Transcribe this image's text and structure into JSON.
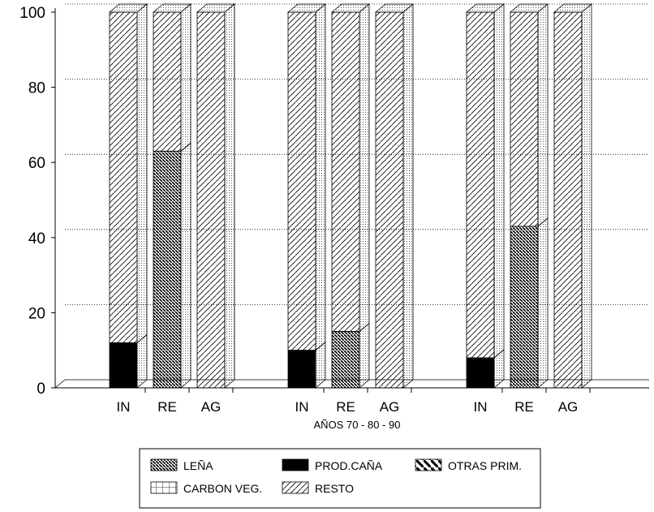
{
  "chart_data": {
    "type": "bar",
    "stacked": true,
    "three_d": true,
    "xlabel": "AÑOS 70 - 80 - 90",
    "ylabel": "",
    "ylim": [
      0,
      100
    ],
    "yticks": [
      0,
      20,
      40,
      60,
      80,
      100
    ],
    "grid": true,
    "legend_placement": "bottom",
    "groups": [
      "70",
      "80",
      "90"
    ],
    "categories": [
      "IN",
      "RE",
      "AG",
      "IN",
      "RE",
      "AG",
      "IN",
      "RE",
      "AG"
    ],
    "series": [
      {
        "name": "LEÑA",
        "pattern": "dense-backslash",
        "values": [
          0,
          63,
          0,
          0,
          15,
          0,
          0,
          43,
          0
        ]
      },
      {
        "name": "PROD.CAÑA",
        "pattern": "solid-black",
        "values": [
          12,
          0,
          0,
          10,
          0,
          0,
          8,
          0,
          0
        ]
      },
      {
        "name": "OTRAS PRIM.",
        "pattern": "wide-backslash",
        "values": [
          0,
          0,
          0,
          0,
          0,
          0,
          0,
          0,
          0
        ]
      },
      {
        "name": "CARBON VEG.",
        "pattern": "grid",
        "values": [
          0,
          0,
          0,
          0,
          0,
          0,
          0,
          0,
          0
        ]
      },
      {
        "name": "RESTO",
        "pattern": "forward-slash",
        "values": [
          88,
          37,
          100,
          90,
          85,
          100,
          92,
          57,
          100
        ]
      }
    ]
  }
}
